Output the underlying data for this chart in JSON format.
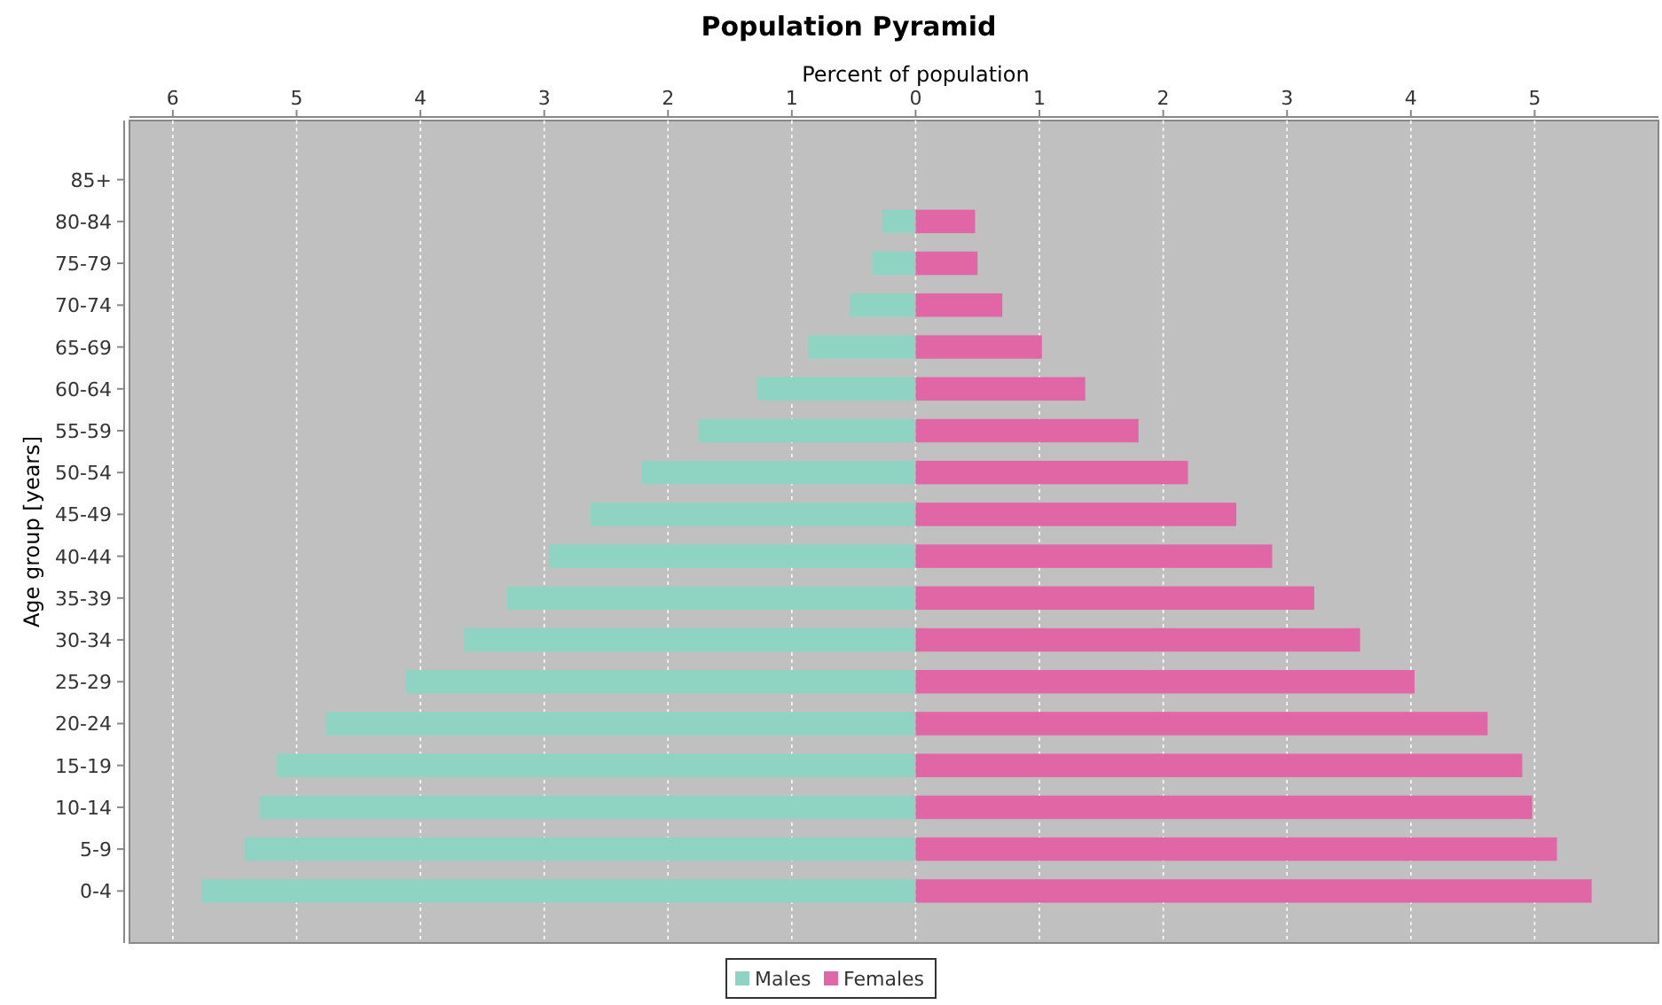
{
  "chart_data": {
    "type": "bar",
    "orientation": "horizontal",
    "title": "Population Pyramid",
    "xlabel": "Percent of population",
    "ylabel": "Age group [years]",
    "categories": [
      "85+",
      "80-84",
      "75-79",
      "70-74",
      "65-69",
      "60-64",
      "55-59",
      "50-54",
      "45-49",
      "40-44",
      "35-39",
      "30-34",
      "25-29",
      "20-24",
      "15-19",
      "10-14",
      "5-9",
      "0-4"
    ],
    "series": [
      {
        "name": "Males",
        "color": "#8fd4c2",
        "values": [
          0,
          -0.27,
          -0.35,
          -0.53,
          -0.87,
          -1.28,
          -1.75,
          -2.21,
          -2.63,
          -2.96,
          -3.3,
          -3.65,
          -4.12,
          -4.76,
          -5.16,
          -5.3,
          -5.42,
          -5.77
        ]
      },
      {
        "name": "Females",
        "color": "#e066a6",
        "values": [
          0,
          0.48,
          0.5,
          0.7,
          1.02,
          1.37,
          1.8,
          2.2,
          2.59,
          2.88,
          3.22,
          3.59,
          4.03,
          4.62,
          4.9,
          4.98,
          5.18,
          5.46
        ]
      }
    ],
    "xlim": [
      -6.35,
      6
    ],
    "xticks": [
      {
        "value": -6,
        "label": "6"
      },
      {
        "value": -5,
        "label": "5"
      },
      {
        "value": -4,
        "label": "4"
      },
      {
        "value": -3,
        "label": "3"
      },
      {
        "value": -2,
        "label": "2"
      },
      {
        "value": -1,
        "label": "1"
      },
      0,
      1,
      2,
      3,
      4,
      5
    ],
    "grid": "x",
    "legend": "bottom",
    "stacked": true
  }
}
